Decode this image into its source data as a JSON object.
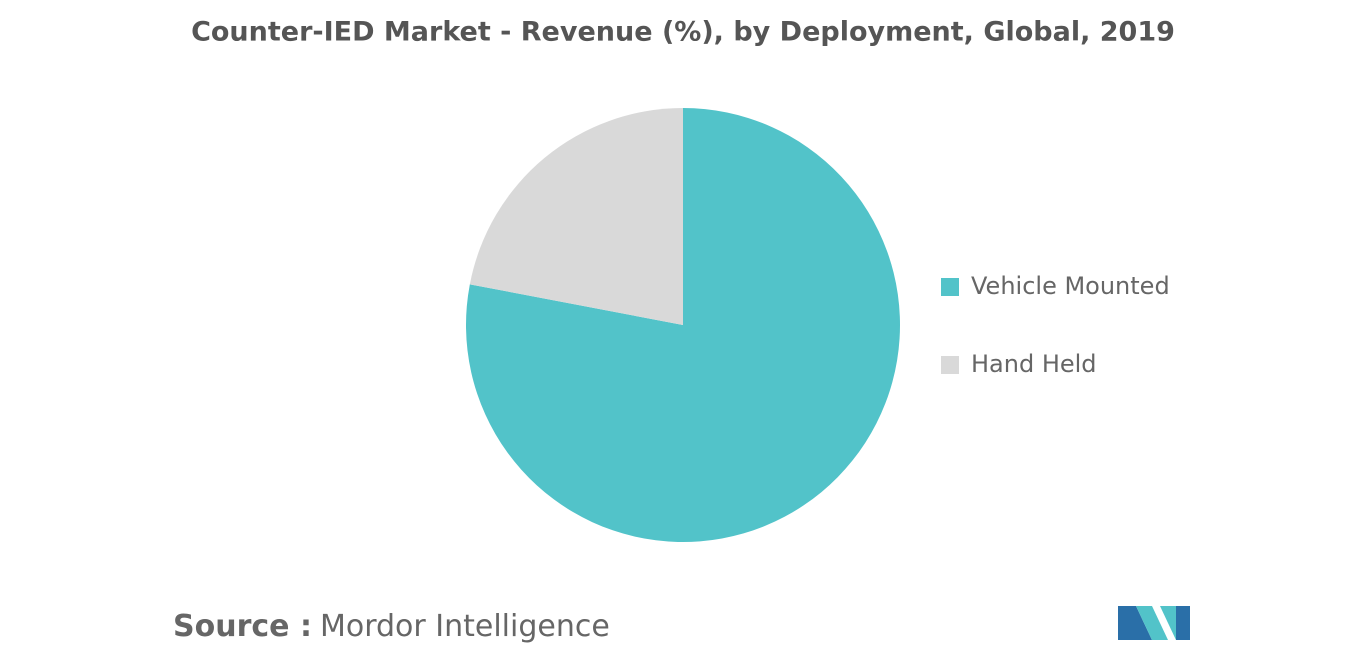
{
  "chart_data": {
    "type": "pie",
    "title": "Counter-IED Market - Revenue (%), by Deployment, Global, 2019",
    "categories": [
      "Vehicle Mounted",
      "Hand Held"
    ],
    "values": [
      78,
      22
    ],
    "colors": [
      "#52c3c9",
      "#d9d9d9"
    ],
    "legend": "right"
  },
  "footer": {
    "source_label": "Source :",
    "source": "Mordor Intelligence"
  }
}
